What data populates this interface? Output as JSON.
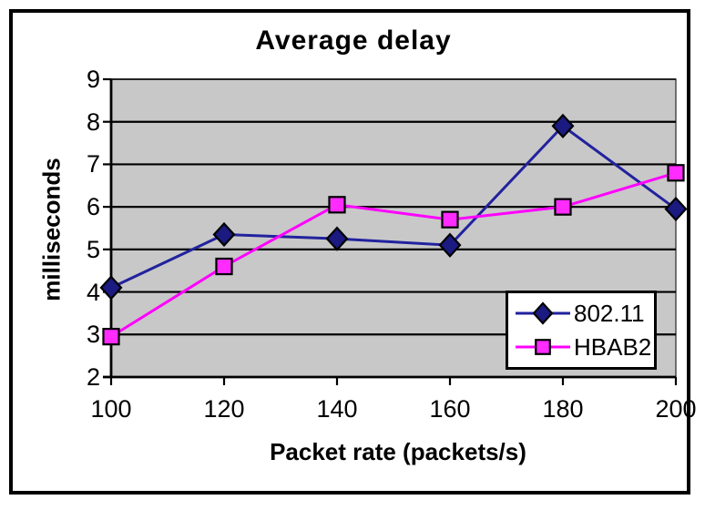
{
  "chart_data": {
    "type": "line",
    "title": "Average delay",
    "xlabel": "Packet rate (packets/s)",
    "ylabel": "milliseconds",
    "x": [
      100,
      120,
      140,
      160,
      180,
      200
    ],
    "xtick_labels": [
      "100",
      "120",
      "140",
      "160",
      "180",
      "200"
    ],
    "ylim": [
      2,
      9
    ],
    "ytick_values": [
      2,
      3,
      4,
      5,
      6,
      7,
      8,
      9
    ],
    "grid": true,
    "legend_position": "inside-lower-right",
    "plot_background": "#c8c8c8",
    "gridline_color": "#000000",
    "axis_color": "#000000",
    "series": [
      {
        "name": "802.11",
        "marker": "diamond",
        "line_color": "#22229e",
        "marker_color": "#1a1a80",
        "values": [
          4.1,
          5.35,
          5.25,
          5.1,
          7.9,
          5.95
        ]
      },
      {
        "name": "HBAB2",
        "marker": "square",
        "line_color": "#ff00ff",
        "marker_color": "#ff2bff",
        "values": [
          2.95,
          4.6,
          6.05,
          5.7,
          6.0,
          6.8
        ]
      }
    ]
  },
  "frame": {
    "border_color": "#000000",
    "background": "#ffffff"
  }
}
